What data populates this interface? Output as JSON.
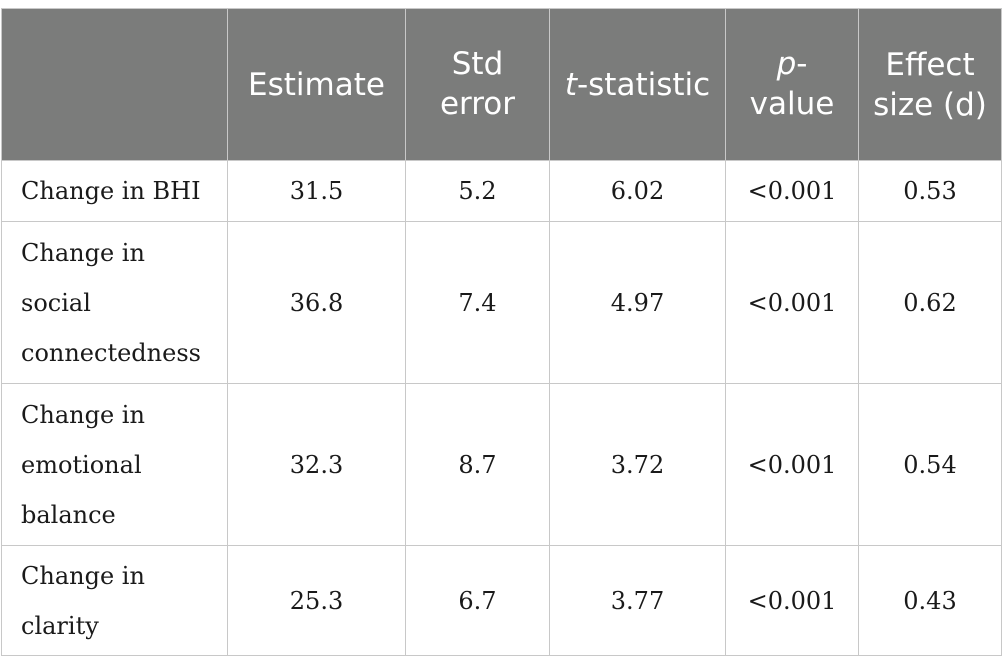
{
  "table": {
    "headers": [
      {
        "key": "label",
        "text": ""
      },
      {
        "key": "estimate",
        "text": "Estimate"
      },
      {
        "key": "std_error",
        "text": "Std error"
      },
      {
        "key": "t_statistic",
        "italic_prefix": "t",
        "text": "-statistic"
      },
      {
        "key": "p_value",
        "italic_prefix": "p",
        "text": "-value"
      },
      {
        "key": "effect_size",
        "text": "Effect size (d)"
      }
    ],
    "rows": [
      {
        "label": "Change in BHI",
        "estimate": "31.5",
        "std_error": "5.2",
        "t_statistic": "6.02",
        "p_value": "<0.001",
        "effect_size": "0.53"
      },
      {
        "label": "Change in social connectedness",
        "estimate": "36.8",
        "std_error": "7.4",
        "t_statistic": "4.97",
        "p_value": "<0.001",
        "effect_size": "0.62"
      },
      {
        "label": "Change in emotional balance",
        "estimate": "32.3",
        "std_error": "8.7",
        "t_statistic": "3.72",
        "p_value": "<0.001",
        "effect_size": "0.54"
      },
      {
        "label": "Change in clarity",
        "estimate": "25.3",
        "std_error": "6.7",
        "t_statistic": "3.77",
        "p_value": "<0.001",
        "effect_size": "0.43"
      }
    ]
  },
  "colors": {
    "header_bg": "#7b7c7b",
    "header_text": "#ffffff",
    "grid": "#c8c8c8",
    "body_text": "#1a1a1a"
  }
}
